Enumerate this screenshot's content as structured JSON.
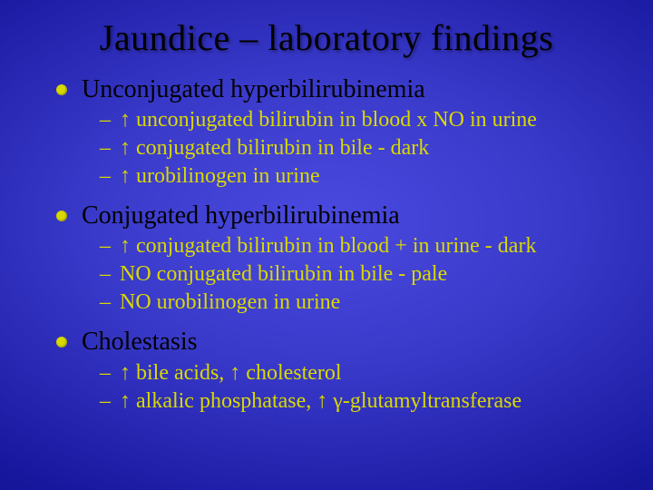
{
  "colors": {
    "background_center": "#4a4ae0",
    "background_edge": "#0a0a78",
    "title_color": "#000000",
    "l1_text_color": "#000000",
    "l1_bullet_color": "#d9d900",
    "l2_text_color": "#d9d900"
  },
  "typography": {
    "font_family": "Times New Roman",
    "title_fontsize_pt": 40,
    "l1_fontsize_pt": 28,
    "l2_fontsize_pt": 24
  },
  "title": "Jaundice – laboratory findings",
  "items": {
    "a": {
      "label": "Unconjugated hyperbilirubinemia",
      "sub": {
        "0": "↑ unconjugated bilirubin in blood x NO in urine",
        "1": "↑ conjugated bilirubin in bile - dark",
        "2": "↑ urobilinogen in urine"
      }
    },
    "b": {
      "label": "Conjugated hyperbilirubinemia",
      "sub": {
        "0": "↑ conjugated bilirubin in blood + in urine - dark",
        "1": "NO conjugated bilirubin in bile - pale",
        "2": "NO urobilinogen in urine"
      }
    },
    "c": {
      "label": "Cholestasis",
      "sub": {
        "0": "↑ bile acids, ↑ cholesterol",
        "1": "↑ alkalic phosphatase, ↑ γ-glutamyltransferase"
      }
    }
  }
}
